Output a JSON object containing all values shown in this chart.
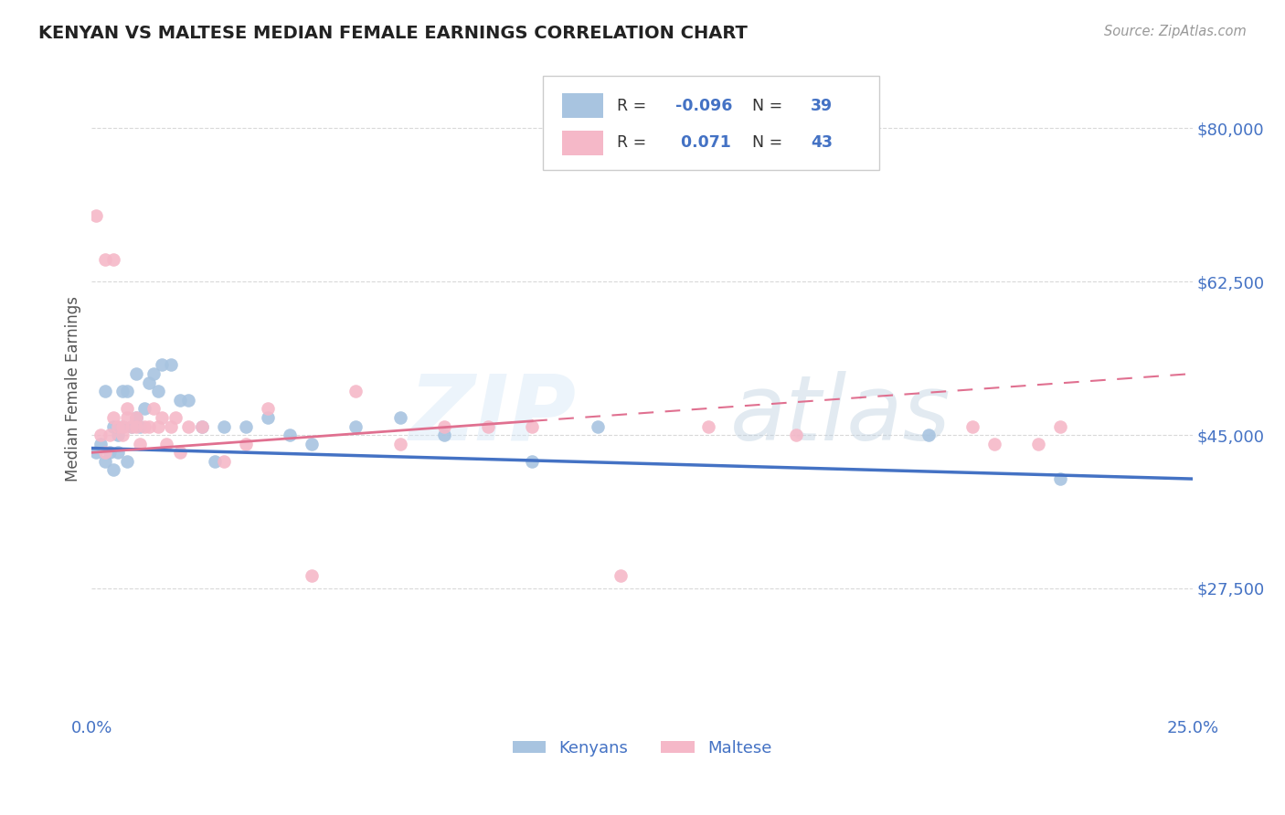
{
  "title": "KENYAN VS MALTESE MEDIAN FEMALE EARNINGS CORRELATION CHART",
  "source": "Source: ZipAtlas.com",
  "ylabel": "Median Female Earnings",
  "xlim": [
    0.0,
    0.25
  ],
  "ylim": [
    13000,
    87500
  ],
  "yticks": [
    27500,
    45000,
    62500,
    80000
  ],
  "ytick_labels": [
    "$27,500",
    "$45,000",
    "$62,500",
    "$80,000"
  ],
  "xticks": [
    0.0,
    0.25
  ],
  "xtick_labels": [
    "0.0%",
    "25.0%"
  ],
  "background_color": "#ffffff",
  "grid_color": "#d0d0d0",
  "title_color": "#222222",
  "axis_label_color": "#555555",
  "tick_color": "#4472c4",
  "kenyan_color": "#a8c4e0",
  "maltese_color": "#f5b8c8",
  "kenyan_line_color": "#4472c4",
  "maltese_line_color": "#e07090",
  "kenyan_R": -0.096,
  "kenyan_N": 39,
  "maltese_R": 0.071,
  "maltese_N": 43,
  "kenyan_x": [
    0.001,
    0.002,
    0.003,
    0.003,
    0.004,
    0.005,
    0.005,
    0.006,
    0.006,
    0.007,
    0.007,
    0.008,
    0.008,
    0.009,
    0.01,
    0.01,
    0.011,
    0.012,
    0.013,
    0.014,
    0.015,
    0.016,
    0.018,
    0.02,
    0.022,
    0.025,
    0.028,
    0.03,
    0.035,
    0.04,
    0.045,
    0.05,
    0.06,
    0.07,
    0.08,
    0.1,
    0.115,
    0.19,
    0.22
  ],
  "kenyan_y": [
    43000,
    44000,
    42000,
    50000,
    43000,
    41000,
    46000,
    45000,
    43000,
    46000,
    50000,
    42000,
    50000,
    46000,
    52000,
    47000,
    46000,
    48000,
    51000,
    52000,
    50000,
    53000,
    53000,
    49000,
    49000,
    46000,
    42000,
    46000,
    46000,
    47000,
    45000,
    44000,
    46000,
    47000,
    45000,
    42000,
    46000,
    45000,
    40000
  ],
  "maltese_x": [
    0.001,
    0.002,
    0.003,
    0.003,
    0.004,
    0.005,
    0.005,
    0.006,
    0.007,
    0.007,
    0.008,
    0.008,
    0.009,
    0.01,
    0.01,
    0.011,
    0.012,
    0.013,
    0.014,
    0.015,
    0.016,
    0.017,
    0.018,
    0.019,
    0.02,
    0.022,
    0.025,
    0.03,
    0.035,
    0.04,
    0.05,
    0.06,
    0.07,
    0.08,
    0.09,
    0.1,
    0.12,
    0.14,
    0.16,
    0.2,
    0.205,
    0.215,
    0.22
  ],
  "maltese_y": [
    70000,
    45000,
    65000,
    43000,
    45000,
    47000,
    65000,
    46000,
    45000,
    46000,
    47000,
    48000,
    46000,
    47000,
    46000,
    44000,
    46000,
    46000,
    48000,
    46000,
    47000,
    44000,
    46000,
    47000,
    43000,
    46000,
    46000,
    42000,
    44000,
    48000,
    29000,
    50000,
    44000,
    46000,
    46000,
    46000,
    29000,
    46000,
    45000,
    46000,
    44000,
    44000,
    46000
  ]
}
